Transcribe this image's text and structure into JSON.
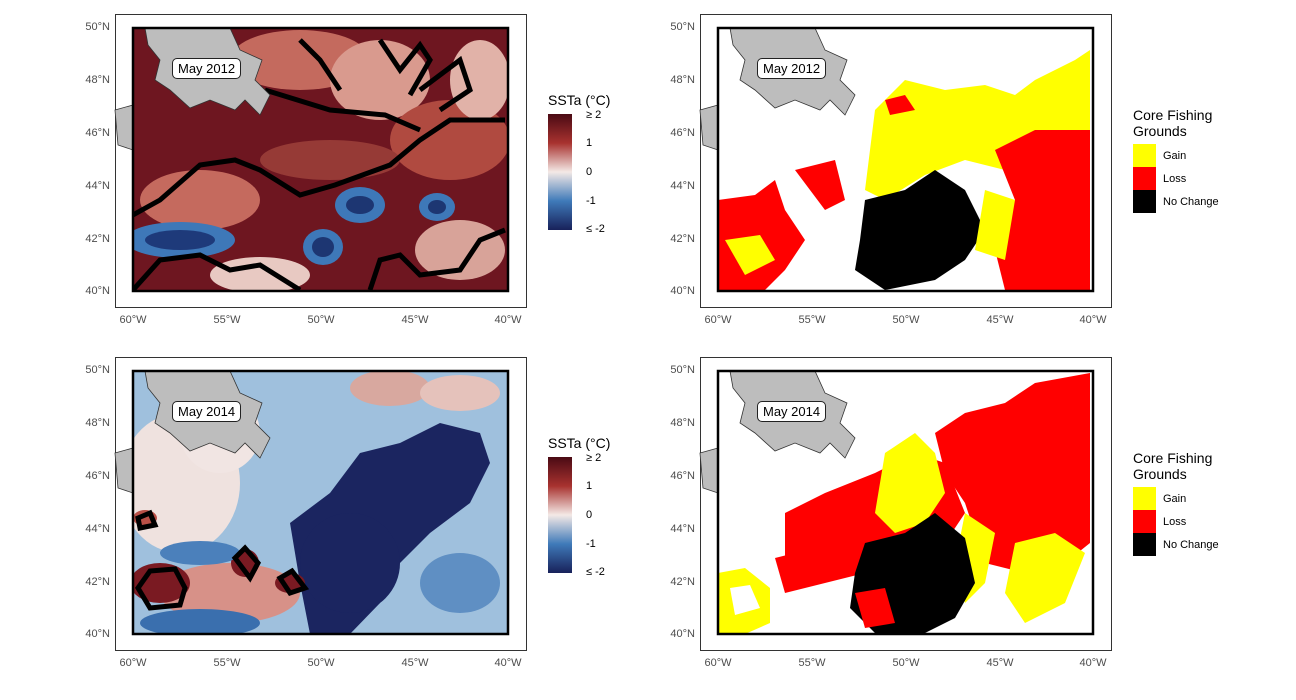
{
  "panels": [
    {
      "id": "p1",
      "label": "May 2012",
      "kind": "ssta"
    },
    {
      "id": "p2",
      "label": "May 2012",
      "kind": "fishing"
    },
    {
      "id": "p3",
      "label": "May 2014",
      "kind": "ssta"
    },
    {
      "id": "p4",
      "label": "May 2014",
      "kind": "fishing"
    }
  ],
  "axes": {
    "y_ticks": [
      "50°N",
      "48°N",
      "46°N",
      "44°N",
      "42°N",
      "40°N"
    ],
    "x_ticks": [
      "60°W",
      "55°W",
      "50°W",
      "45°W",
      "40°W"
    ]
  },
  "ssta_legend": {
    "title": "SSTa (°C)",
    "labels": [
      "≥ 2",
      "1",
      "0",
      "-1",
      "≤ -2"
    ],
    "colors": [
      "#4a0a14",
      "#a8322f",
      "#f4e9e6",
      "#3f7ab9",
      "#18215a"
    ]
  },
  "fishing_legend": {
    "title_line1": "Core Fishing",
    "title_line2": "Grounds",
    "items": [
      {
        "label": "Gain",
        "color": "#ffff00"
      },
      {
        "label": "Loss",
        "color": "#ff0000"
      },
      {
        "label": "No Change",
        "color": "#000000"
      }
    ]
  }
}
